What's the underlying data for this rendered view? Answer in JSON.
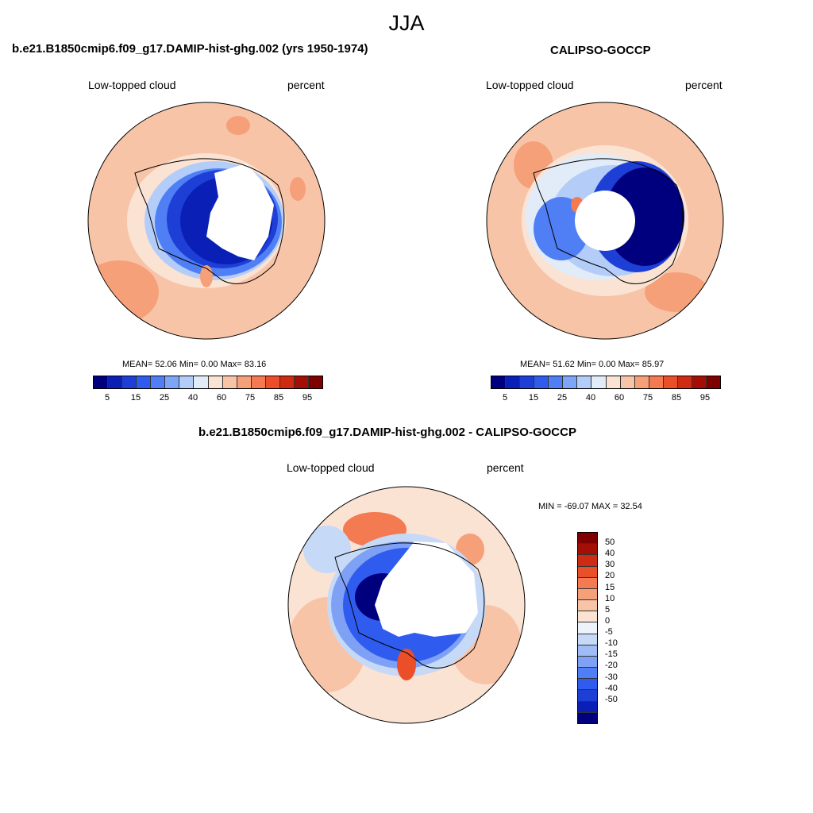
{
  "figure_title": "JJA",
  "panels": [
    {
      "title": "b.e21.B1850cmip6.f09_g17.DAMIP-hist-ghg.002 (yrs 1950-1974)",
      "variable": "Low-topped cloud",
      "units": "percent",
      "stats": "MEAN=  52.06  Min=    0.00  Max=  83.16"
    },
    {
      "title": "CALIPSO-GOCCP",
      "variable": "Low-topped cloud",
      "units": "percent",
      "stats": "MEAN=  51.62  Min=    0.00  Max=  85.97"
    },
    {
      "title": "b.e21.B1850cmip6.f09_g17.DAMIP-hist-ghg.002 - CALIPSO-GOCCP",
      "variable": "Low-topped cloud",
      "units": "percent",
      "stats": "MIN = -69.07 MAX =  32.54"
    }
  ],
  "colorbar_abs": {
    "colors": [
      "#00007f",
      "#0a1fb5",
      "#1e3fd6",
      "#2f5cef",
      "#4f7ef5",
      "#7ea6f7",
      "#b3cdf8",
      "#e2ecf8",
      "#fbe3d4",
      "#f8c4a8",
      "#f6a07a",
      "#f37a51",
      "#eb4f2a",
      "#cf2a12",
      "#a30f05",
      "#7f0000"
    ],
    "ticks": [
      "5",
      "15",
      "25",
      "40",
      "60",
      "75",
      "85",
      "95"
    ]
  },
  "colorbar_diff": {
    "colors": [
      "#7f0000",
      "#a30f05",
      "#cf2a12",
      "#eb4f2a",
      "#f37a51",
      "#f6a07a",
      "#f8c4a8",
      "#fbe3d4",
      "#eef3fb",
      "#c6d9f7",
      "#9fbcf6",
      "#7ea1f5",
      "#4f7ef5",
      "#2f5cef",
      "#1e3fd6",
      "#0a1fb5",
      "#00007f"
    ],
    "ticks": [
      "50",
      "40",
      "30",
      "20",
      "15",
      "10",
      "5",
      "0",
      "-5",
      "-10",
      "-15",
      "-20",
      "-30",
      "-40",
      "-50"
    ]
  }
}
